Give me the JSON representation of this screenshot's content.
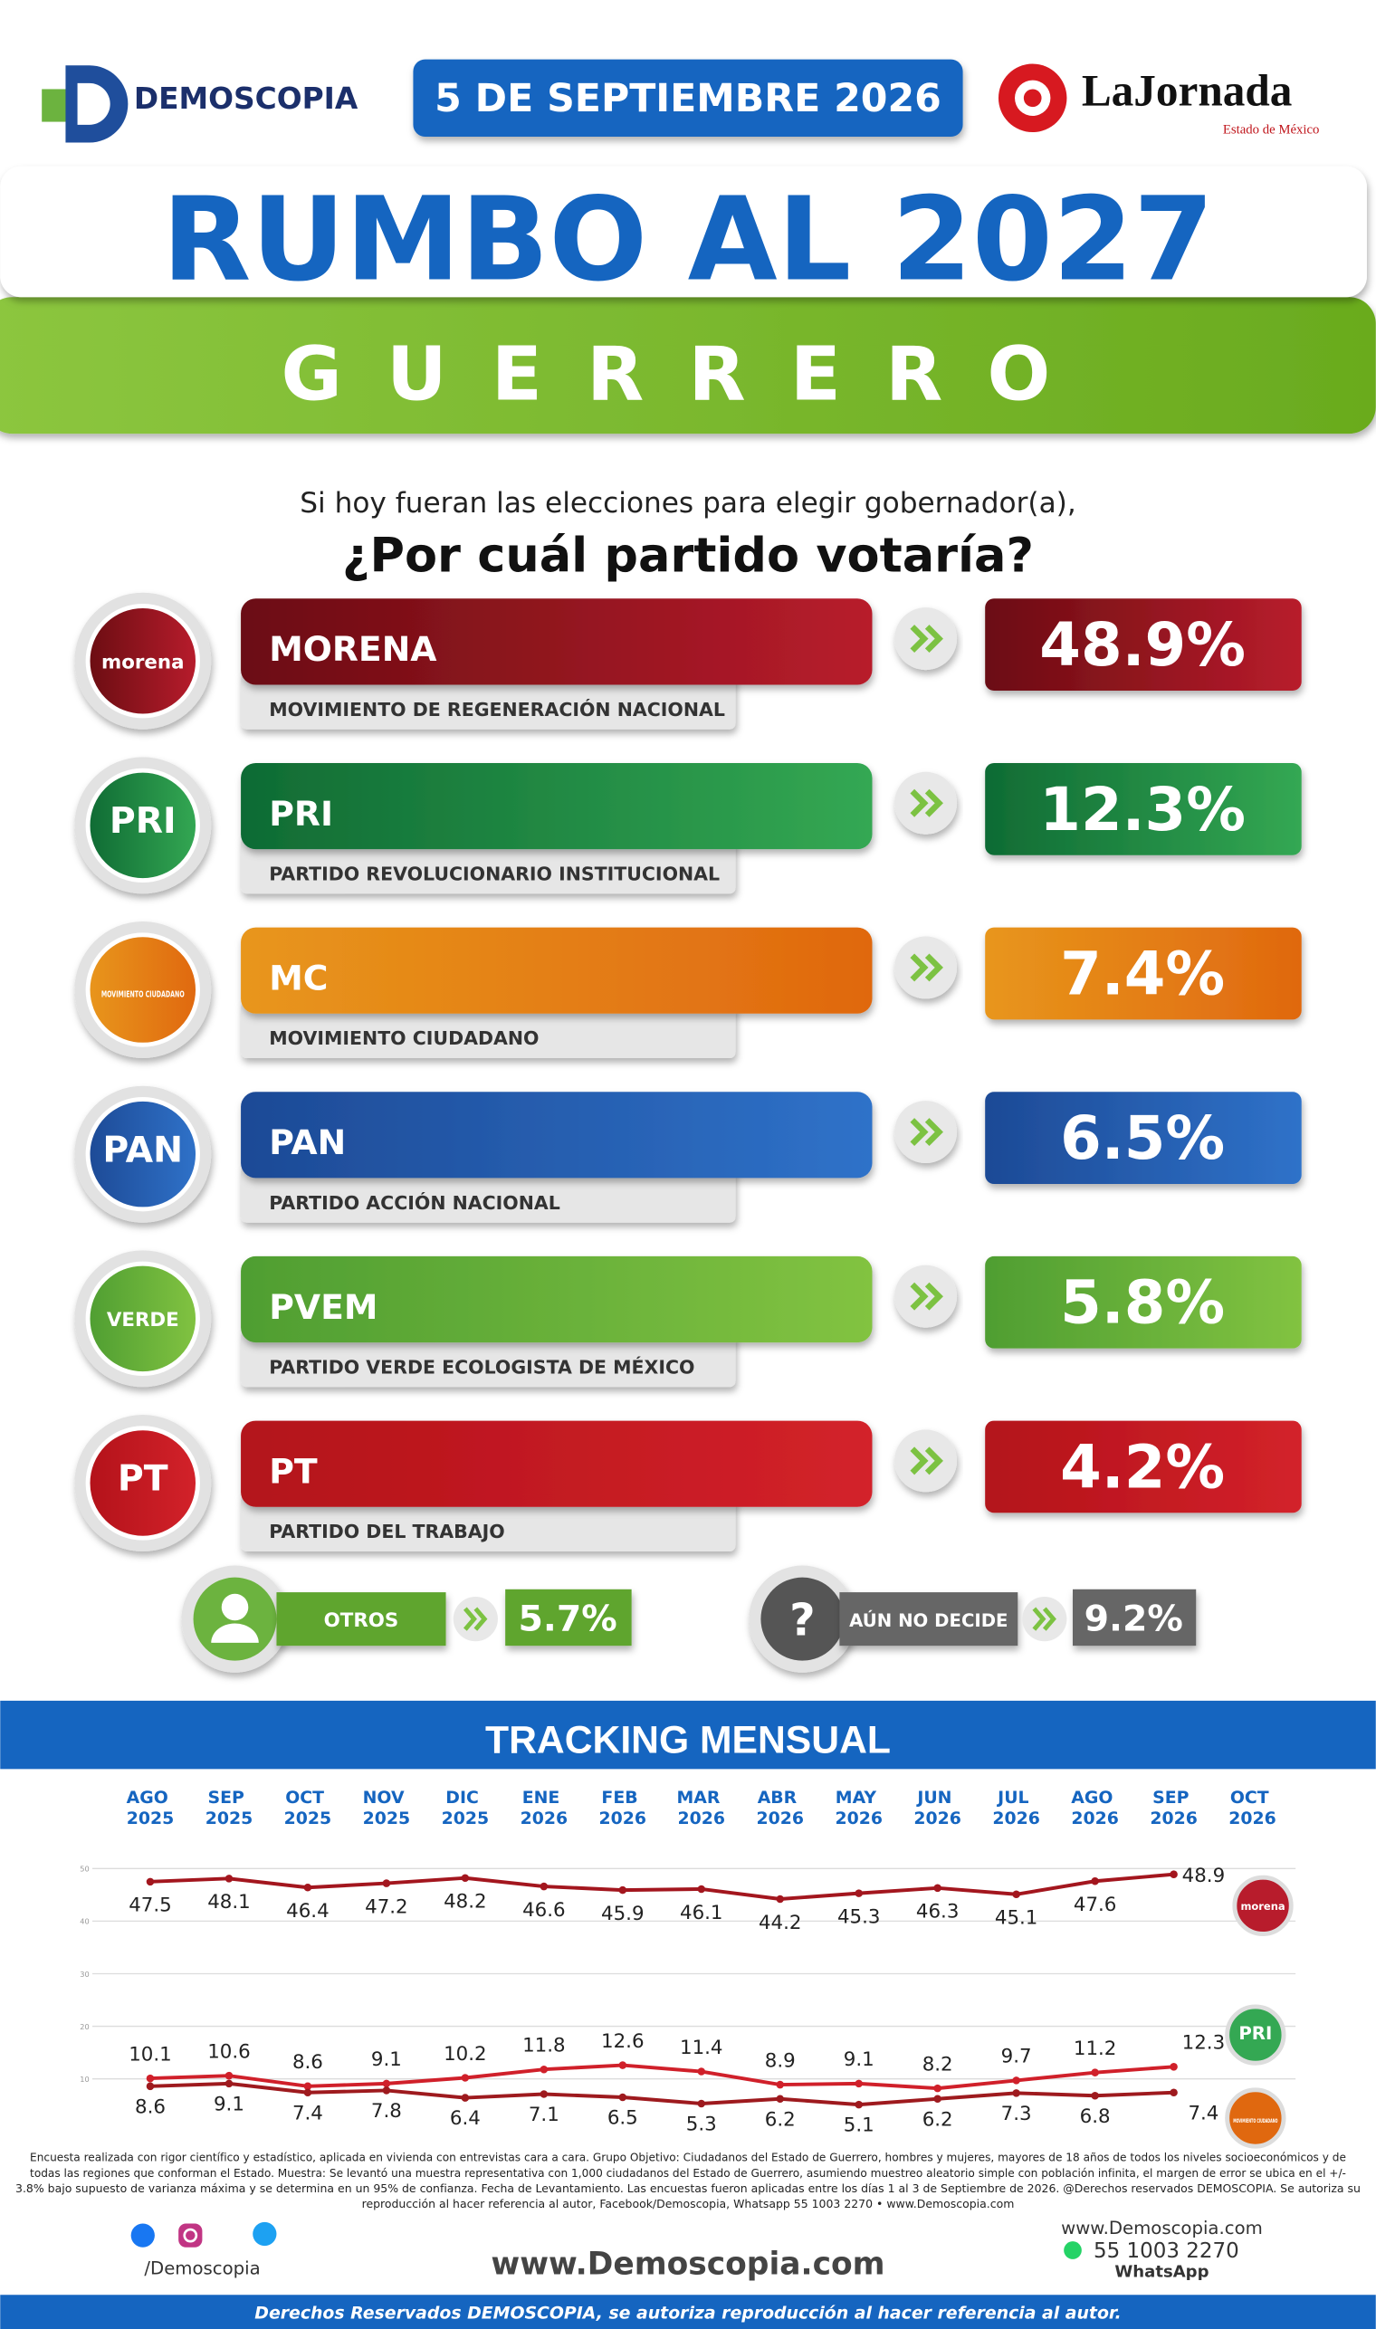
{
  "header": {
    "brand": "DEMOSCOPIA",
    "date": "5 DE SEPTIEMBRE 2026",
    "partner": "LaJornada",
    "partner_sub": "Estado de México"
  },
  "title": "RUMBO AL 2027",
  "state": "GUERRERO",
  "question": {
    "line1": "Si hoy fueran las elecciones para elegir gobernador(a),",
    "line2": "¿Por cuál partido votaría?"
  },
  "parties": [
    {
      "logo": "morena",
      "abbr": "MORENA",
      "name": "MOVIMIENTO DE REGENERACIÓN NACIONAL",
      "value": "48.9%",
      "colors": [
        "#6b0d12",
        "#b81c2c"
      ]
    },
    {
      "logo": "PRI",
      "abbr": "PRI",
      "name": "PARTIDO REVOLUCIONARIO INSTITUCIONAL",
      "value": "12.3%",
      "colors": [
        "#0f6b34",
        "#34a853"
      ]
    },
    {
      "logo": "MOVIMIENTO CIUDADANO",
      "abbr": "MC",
      "name": "MOVIMIENTO CIUDADANO",
      "value": "7.4%",
      "colors": [
        "#e8961c",
        "#e0680f"
      ]
    },
    {
      "logo": "PAN",
      "abbr": "PAN",
      "name": "PARTIDO ACCIÓN NACIONAL",
      "value": "6.5%",
      "colors": [
        "#1d4a96",
        "#2f72c9"
      ]
    },
    {
      "logo": "VERDE",
      "abbr": "PVEM",
      "name": "PARTIDO VERDE ECOLOGISTA DE MÉXICO",
      "value": "5.8%",
      "colors": [
        "#4f9e32",
        "#82c341"
      ]
    },
    {
      "logo": "PT",
      "abbr": "PT",
      "name": "PARTIDO DEL TRABAJO",
      "value": "4.2%",
      "colors": [
        "#b3121a",
        "#d3222a"
      ]
    }
  ],
  "others": {
    "label": "OTROS",
    "value": "5.7%"
  },
  "undecided": {
    "icon": "?",
    "label": "AÚN NO DECIDE",
    "value": "9.2%"
  },
  "chart_data": {
    "type": "line",
    "title": "TRACKING MENSUAL",
    "categories": [
      "AGO 2025",
      "SEP 2025",
      "OCT 2025",
      "NOV 2025",
      "DIC 2025",
      "ENE 2026",
      "FEB 2026",
      "MAR 2026",
      "ABR 2026",
      "MAY 2026",
      "JUN 2026",
      "JUL 2026",
      "AGO 2026",
      "SEP 2026",
      "OCT 2026"
    ],
    "series": [
      {
        "name": "morena",
        "color": "#a3161e",
        "values": [
          47.5,
          48.1,
          46.4,
          47.2,
          48.2,
          46.6,
          45.9,
          46.1,
          44.2,
          45.3,
          46.3,
          45.1,
          47.6,
          48.9,
          null
        ]
      },
      {
        "name": "PRI",
        "color": "#d0202a",
        "values": [
          10.1,
          10.6,
          8.6,
          9.1,
          10.2,
          11.8,
          12.6,
          11.4,
          8.9,
          9.1,
          8.2,
          9.7,
          11.2,
          12.3,
          null
        ]
      },
      {
        "name": "MC",
        "color": "#9e1a1e",
        "values": [
          8.6,
          9.1,
          7.4,
          7.8,
          6.4,
          7.1,
          6.5,
          5.3,
          6.2,
          5.1,
          6.2,
          7.3,
          6.8,
          7.4,
          null
        ]
      }
    ],
    "ylim": [
      0,
      50
    ],
    "yticks": [
      10,
      20,
      30,
      40,
      50
    ],
    "grid": true
  },
  "footer": {
    "methodology": [
      "Encuesta realizada con rigor científico y estadístico, aplicada en vivienda con entrevistas cara a cara. Grupo Objetivo: Ciudadanos del Estado de Guerrero, hombres y mujeres, mayores de 18 años de todos los niveles socioeconómicos y de",
      "todas las regiones que conforman el Estado. Muestra: Se levantó una muestra representativa con 1,000 ciudadanos del Estado de Guerrero, asumiendo muestreo aleatorio simple con población infinita, el margen de error se ubica en el +/-",
      "3.8% bajo supuesto de varianza máxima y se determina en un 95% de confianza. Fecha de Levantamiento. Las encuestas fueron aplicadas entre los días 1 al 3 de Septiembre de 2026. @Derechos reservados DEMOSCOPIA. Se autoriza su",
      "reproducción al hacer referencia al autor, Facebook/Demoscopia, Whatsapp 55 1003 2270 • www.Demoscopia.com"
    ],
    "social": "/Demoscopia",
    "website": "www.Demoscopia.com",
    "contact_web": "www.Demoscopia.com",
    "phone": "55 1003 2270",
    "whatsapp": "WhatsApp",
    "rights": "Derechos Reservados DEMOSCOPIA, se autoriza reproducción al hacer referencia al autor."
  }
}
